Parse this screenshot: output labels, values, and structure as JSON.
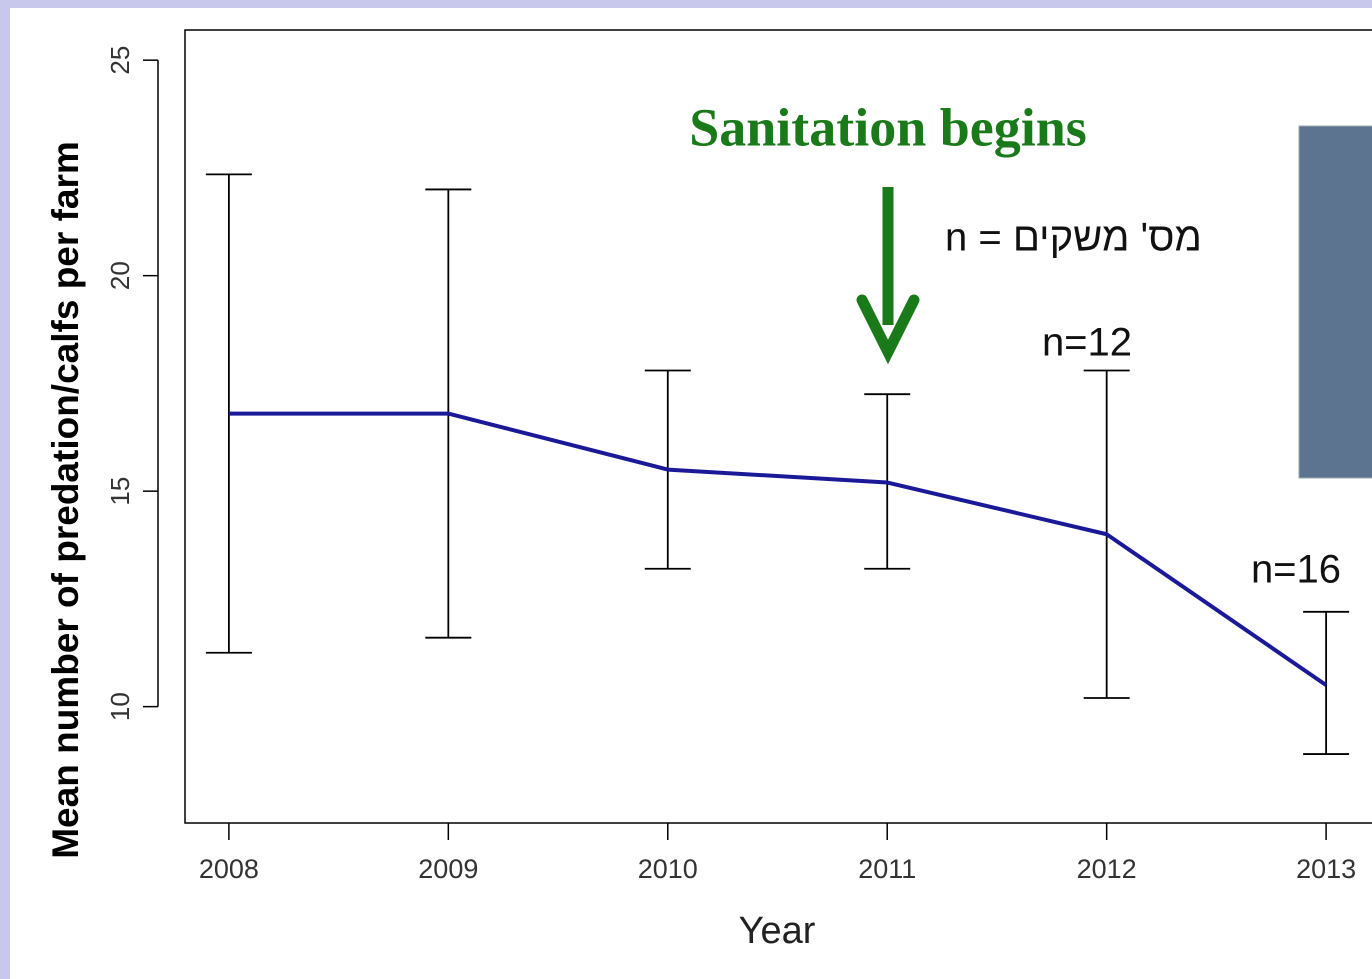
{
  "chart_data": {
    "type": "line",
    "y_label": "Mean number of predation/calfs per farm",
    "x_label": "Year",
    "annotations": [
      "Sanitation begins",
      "n = מס' משקים",
      "n=12",
      "n=16"
    ],
    "x": [
      2008,
      2009,
      2010,
      2011,
      2012,
      2013
    ],
    "series": [
      {
        "color": "#1a1a99",
        "values": [
          16.8,
          16.8,
          15.5,
          15.2,
          14.0,
          10.5
        ],
        "lower": [
          11.25,
          11.6,
          13.2,
          13.2,
          10.2,
          8.9
        ],
        "upper": [
          22.35,
          22.0,
          17.8,
          17.25,
          17.8,
          12.2
        ]
      }
    ],
    "xlim": [
      2007.8,
      2013.2
    ],
    "xticks": [
      2008,
      2009,
      2010,
      2011,
      2012,
      2013
    ],
    "ylim": [
      7.3,
      25.7
    ],
    "yticks": [
      10,
      15,
      20,
      25
    ]
  }
}
